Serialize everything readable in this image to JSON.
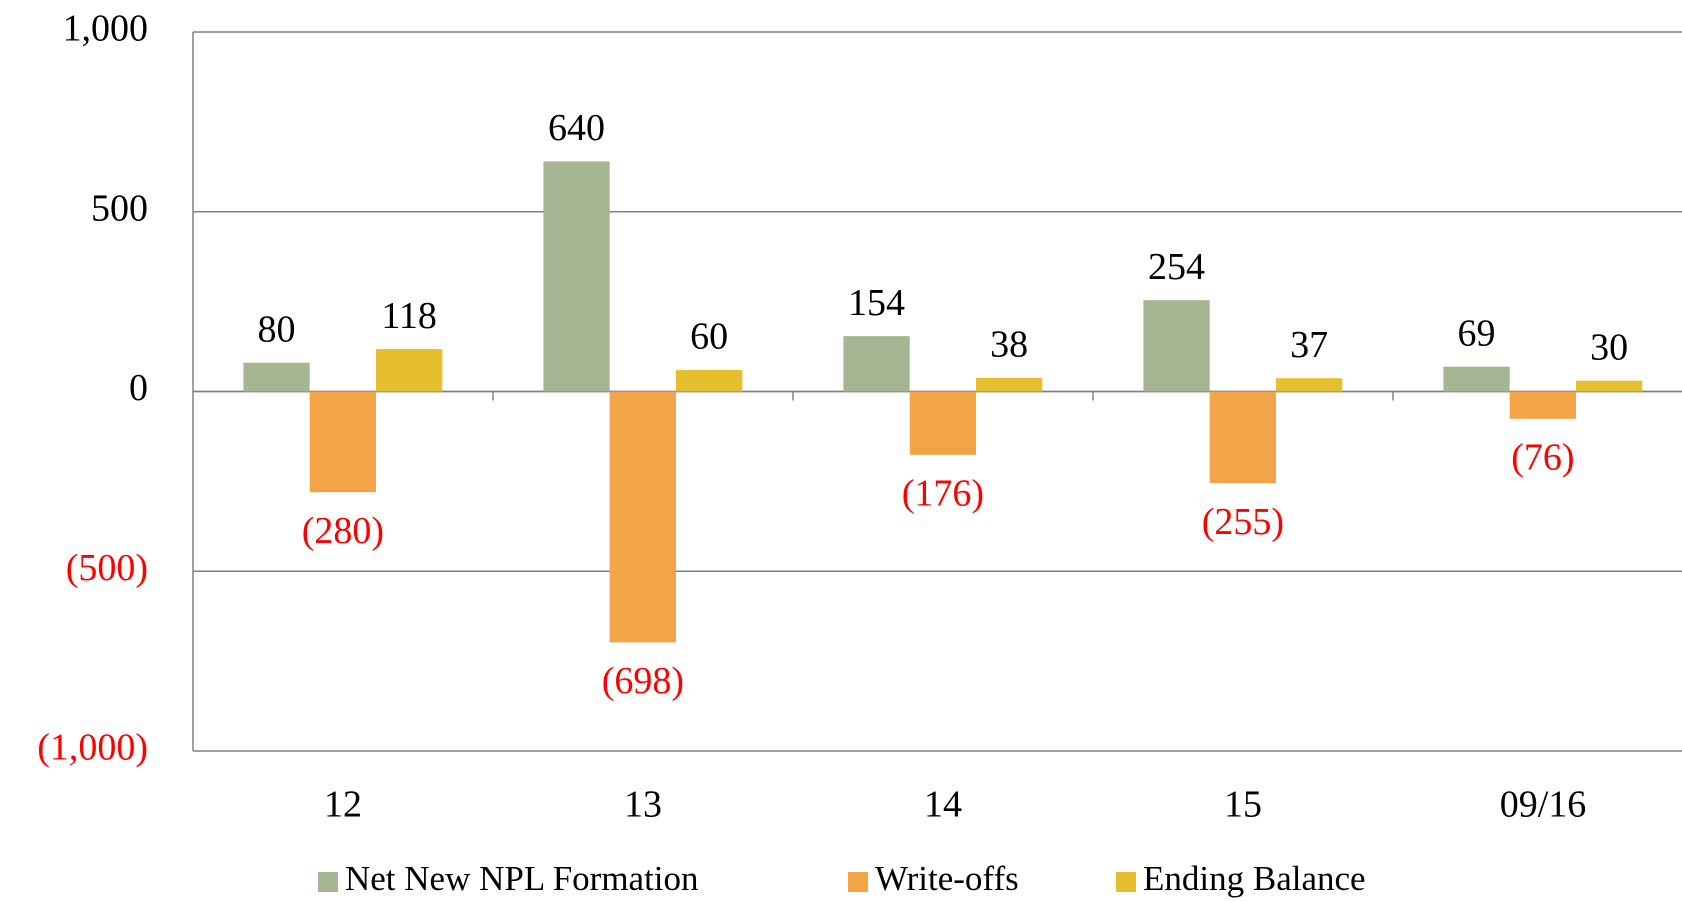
{
  "chart_data": {
    "type": "bar",
    "categories": [
      "12",
      "13",
      "14",
      "15",
      "09/16"
    ],
    "series": [
      {
        "name": "Net New NPL Formation",
        "color": "#a5b592",
        "values": [
          80,
          640,
          154,
          254,
          69
        ]
      },
      {
        "name": "Write-offs",
        "color": "#f3a447",
        "values": [
          -280,
          -698,
          -176,
          -255,
          -76
        ],
        "value_labels": [
          "(280)",
          "(698)",
          "(176)",
          "(255)",
          "(76)"
        ]
      },
      {
        "name": "Ending Balance",
        "color": "#e6bf2f",
        "values": [
          118,
          60,
          38,
          37,
          30
        ]
      }
    ],
    "ylim": [
      -1000,
      1000
    ],
    "yticks": [
      {
        "value": -1000,
        "label": "(1,000)"
      },
      {
        "value": -500,
        "label": "(500)"
      },
      0,
      500,
      {
        "value": 1000,
        "label": "1,000"
      }
    ],
    "grid": true,
    "negative_label_color": "#ff0000",
    "legend": "bottom"
  }
}
